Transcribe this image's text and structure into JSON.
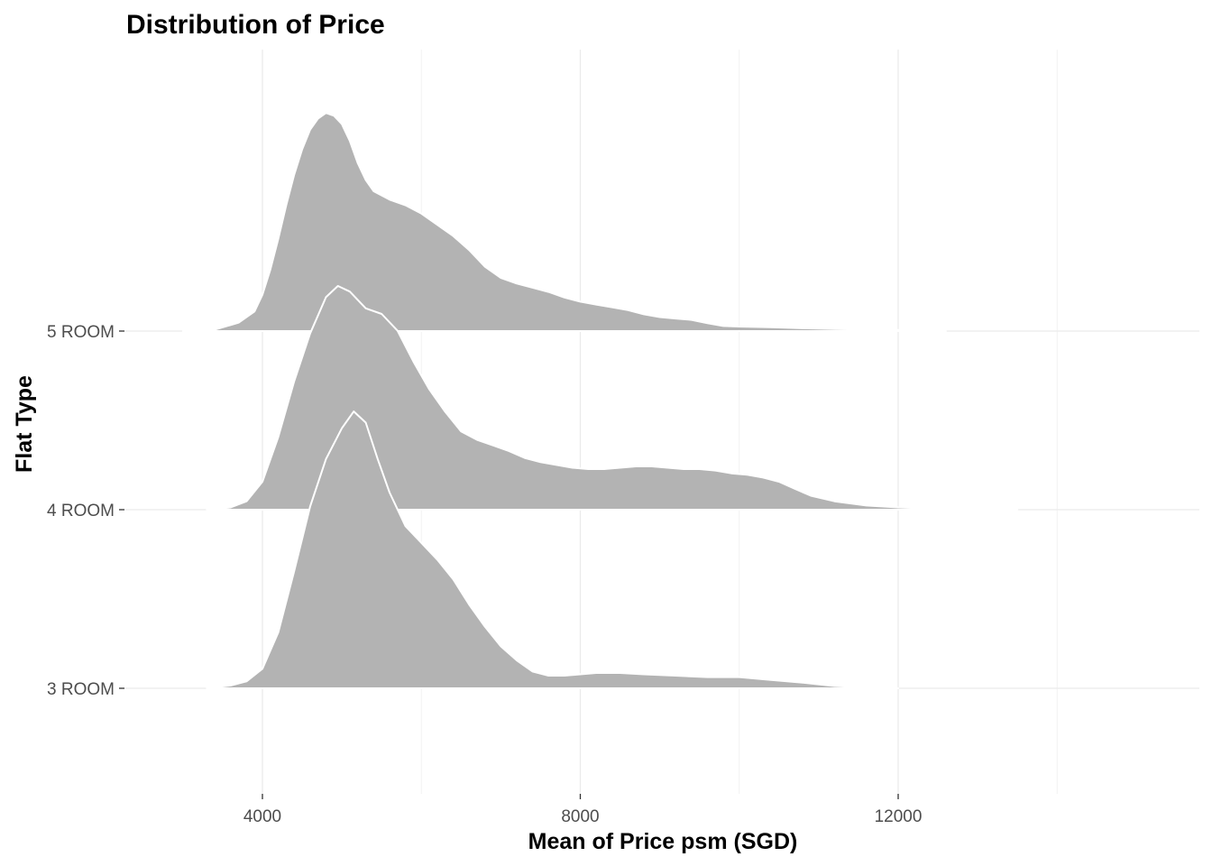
{
  "chart_data": {
    "type": "ridgeline",
    "title": "Distribution of Price",
    "xlabel": "Mean of Price psm (SGD)",
    "ylabel": "Flat Type",
    "xlim": [
      2000,
      15500
    ],
    "x_ticks": [
      4000,
      8000,
      12000
    ],
    "x_tick_labels": [
      "4000",
      "8000",
      "12000"
    ],
    "categories": [
      "3 ROOM",
      "4 ROOM",
      "5 ROOM"
    ],
    "fill_color": "#b3b3b3",
    "outline_color": "#ffffff",
    "grid": true,
    "legend": "none",
    "series": [
      {
        "name": "3 ROOM",
        "points": [
          [
            3300,
            0
          ],
          [
            3600,
            0.01
          ],
          [
            3800,
            0.025
          ],
          [
            4000,
            0.07
          ],
          [
            4200,
            0.2
          ],
          [
            4400,
            0.42
          ],
          [
            4600,
            0.65
          ],
          [
            4800,
            0.82
          ],
          [
            5000,
            0.93
          ],
          [
            5150,
            0.99
          ],
          [
            5300,
            0.95
          ],
          [
            5450,
            0.82
          ],
          [
            5600,
            0.7
          ],
          [
            5800,
            0.58
          ],
          [
            6000,
            0.52
          ],
          [
            6200,
            0.46
          ],
          [
            6400,
            0.39
          ],
          [
            6600,
            0.3
          ],
          [
            6800,
            0.22
          ],
          [
            7000,
            0.15
          ],
          [
            7200,
            0.1
          ],
          [
            7400,
            0.06
          ],
          [
            7600,
            0.045
          ],
          [
            7800,
            0.045
          ],
          [
            8000,
            0.05
          ],
          [
            8200,
            0.055
          ],
          [
            8500,
            0.055
          ],
          [
            8800,
            0.05
          ],
          [
            9200,
            0.045
          ],
          [
            9600,
            0.04
          ],
          [
            10000,
            0.04
          ],
          [
            10400,
            0.03
          ],
          [
            10800,
            0.02
          ],
          [
            11200,
            0.008
          ],
          [
            11600,
            0.003
          ],
          [
            12000,
            0
          ]
        ]
      },
      {
        "name": "4 ROOM",
        "points": [
          [
            3300,
            0
          ],
          [
            3600,
            0.008
          ],
          [
            3800,
            0.03
          ],
          [
            4000,
            0.1
          ],
          [
            4200,
            0.26
          ],
          [
            4400,
            0.46
          ],
          [
            4600,
            0.63
          ],
          [
            4800,
            0.76
          ],
          [
            4950,
            0.8
          ],
          [
            5100,
            0.78
          ],
          [
            5300,
            0.72
          ],
          [
            5500,
            0.7
          ],
          [
            5700,
            0.64
          ],
          [
            5900,
            0.53
          ],
          [
            6100,
            0.43
          ],
          [
            6300,
            0.35
          ],
          [
            6500,
            0.28
          ],
          [
            6700,
            0.25
          ],
          [
            6900,
            0.23
          ],
          [
            7100,
            0.21
          ],
          [
            7300,
            0.185
          ],
          [
            7500,
            0.17
          ],
          [
            7700,
            0.16
          ],
          [
            7900,
            0.15
          ],
          [
            8100,
            0.145
          ],
          [
            8300,
            0.145
          ],
          [
            8500,
            0.15
          ],
          [
            8700,
            0.155
          ],
          [
            8900,
            0.155
          ],
          [
            9100,
            0.15
          ],
          [
            9300,
            0.145
          ],
          [
            9500,
            0.145
          ],
          [
            9700,
            0.14
          ],
          [
            9900,
            0.13
          ],
          [
            10100,
            0.125
          ],
          [
            10300,
            0.115
          ],
          [
            10500,
            0.1
          ],
          [
            10700,
            0.075
          ],
          [
            10900,
            0.05
          ],
          [
            11200,
            0.03
          ],
          [
            11600,
            0.015
          ],
          [
            12000,
            0.008
          ],
          [
            12400,
            0.004
          ],
          [
            12800,
            0.002
          ],
          [
            13200,
            0.001
          ],
          [
            13500,
            0
          ]
        ]
      },
      {
        "name": "5 ROOM",
        "points": [
          [
            3000,
            0
          ],
          [
            3400,
            0.005
          ],
          [
            3700,
            0.03
          ],
          [
            3900,
            0.07
          ],
          [
            4000,
            0.13
          ],
          [
            4100,
            0.22
          ],
          [
            4200,
            0.33
          ],
          [
            4300,
            0.45
          ],
          [
            4400,
            0.56
          ],
          [
            4500,
            0.65
          ],
          [
            4600,
            0.72
          ],
          [
            4700,
            0.76
          ],
          [
            4800,
            0.78
          ],
          [
            4900,
            0.77
          ],
          [
            5000,
            0.74
          ],
          [
            5100,
            0.68
          ],
          [
            5200,
            0.6
          ],
          [
            5300,
            0.54
          ],
          [
            5400,
            0.5
          ],
          [
            5600,
            0.47
          ],
          [
            5800,
            0.45
          ],
          [
            6000,
            0.42
          ],
          [
            6200,
            0.38
          ],
          [
            6400,
            0.34
          ],
          [
            6600,
            0.29
          ],
          [
            6800,
            0.23
          ],
          [
            7000,
            0.19
          ],
          [
            7200,
            0.17
          ],
          [
            7400,
            0.155
          ],
          [
            7600,
            0.14
          ],
          [
            7800,
            0.12
          ],
          [
            8000,
            0.105
          ],
          [
            8200,
            0.095
          ],
          [
            8400,
            0.085
          ],
          [
            8600,
            0.075
          ],
          [
            8800,
            0.06
          ],
          [
            9000,
            0.05
          ],
          [
            9200,
            0.045
          ],
          [
            9400,
            0.04
          ],
          [
            9600,
            0.028
          ],
          [
            9800,
            0.018
          ],
          [
            10000,
            0.016
          ],
          [
            10400,
            0.014
          ],
          [
            10800,
            0.01
          ],
          [
            11200,
            0.007
          ],
          [
            11600,
            0.005
          ],
          [
            12000,
            0.004
          ],
          [
            12400,
            0.002
          ],
          [
            12600,
            0
          ]
        ]
      }
    ]
  }
}
